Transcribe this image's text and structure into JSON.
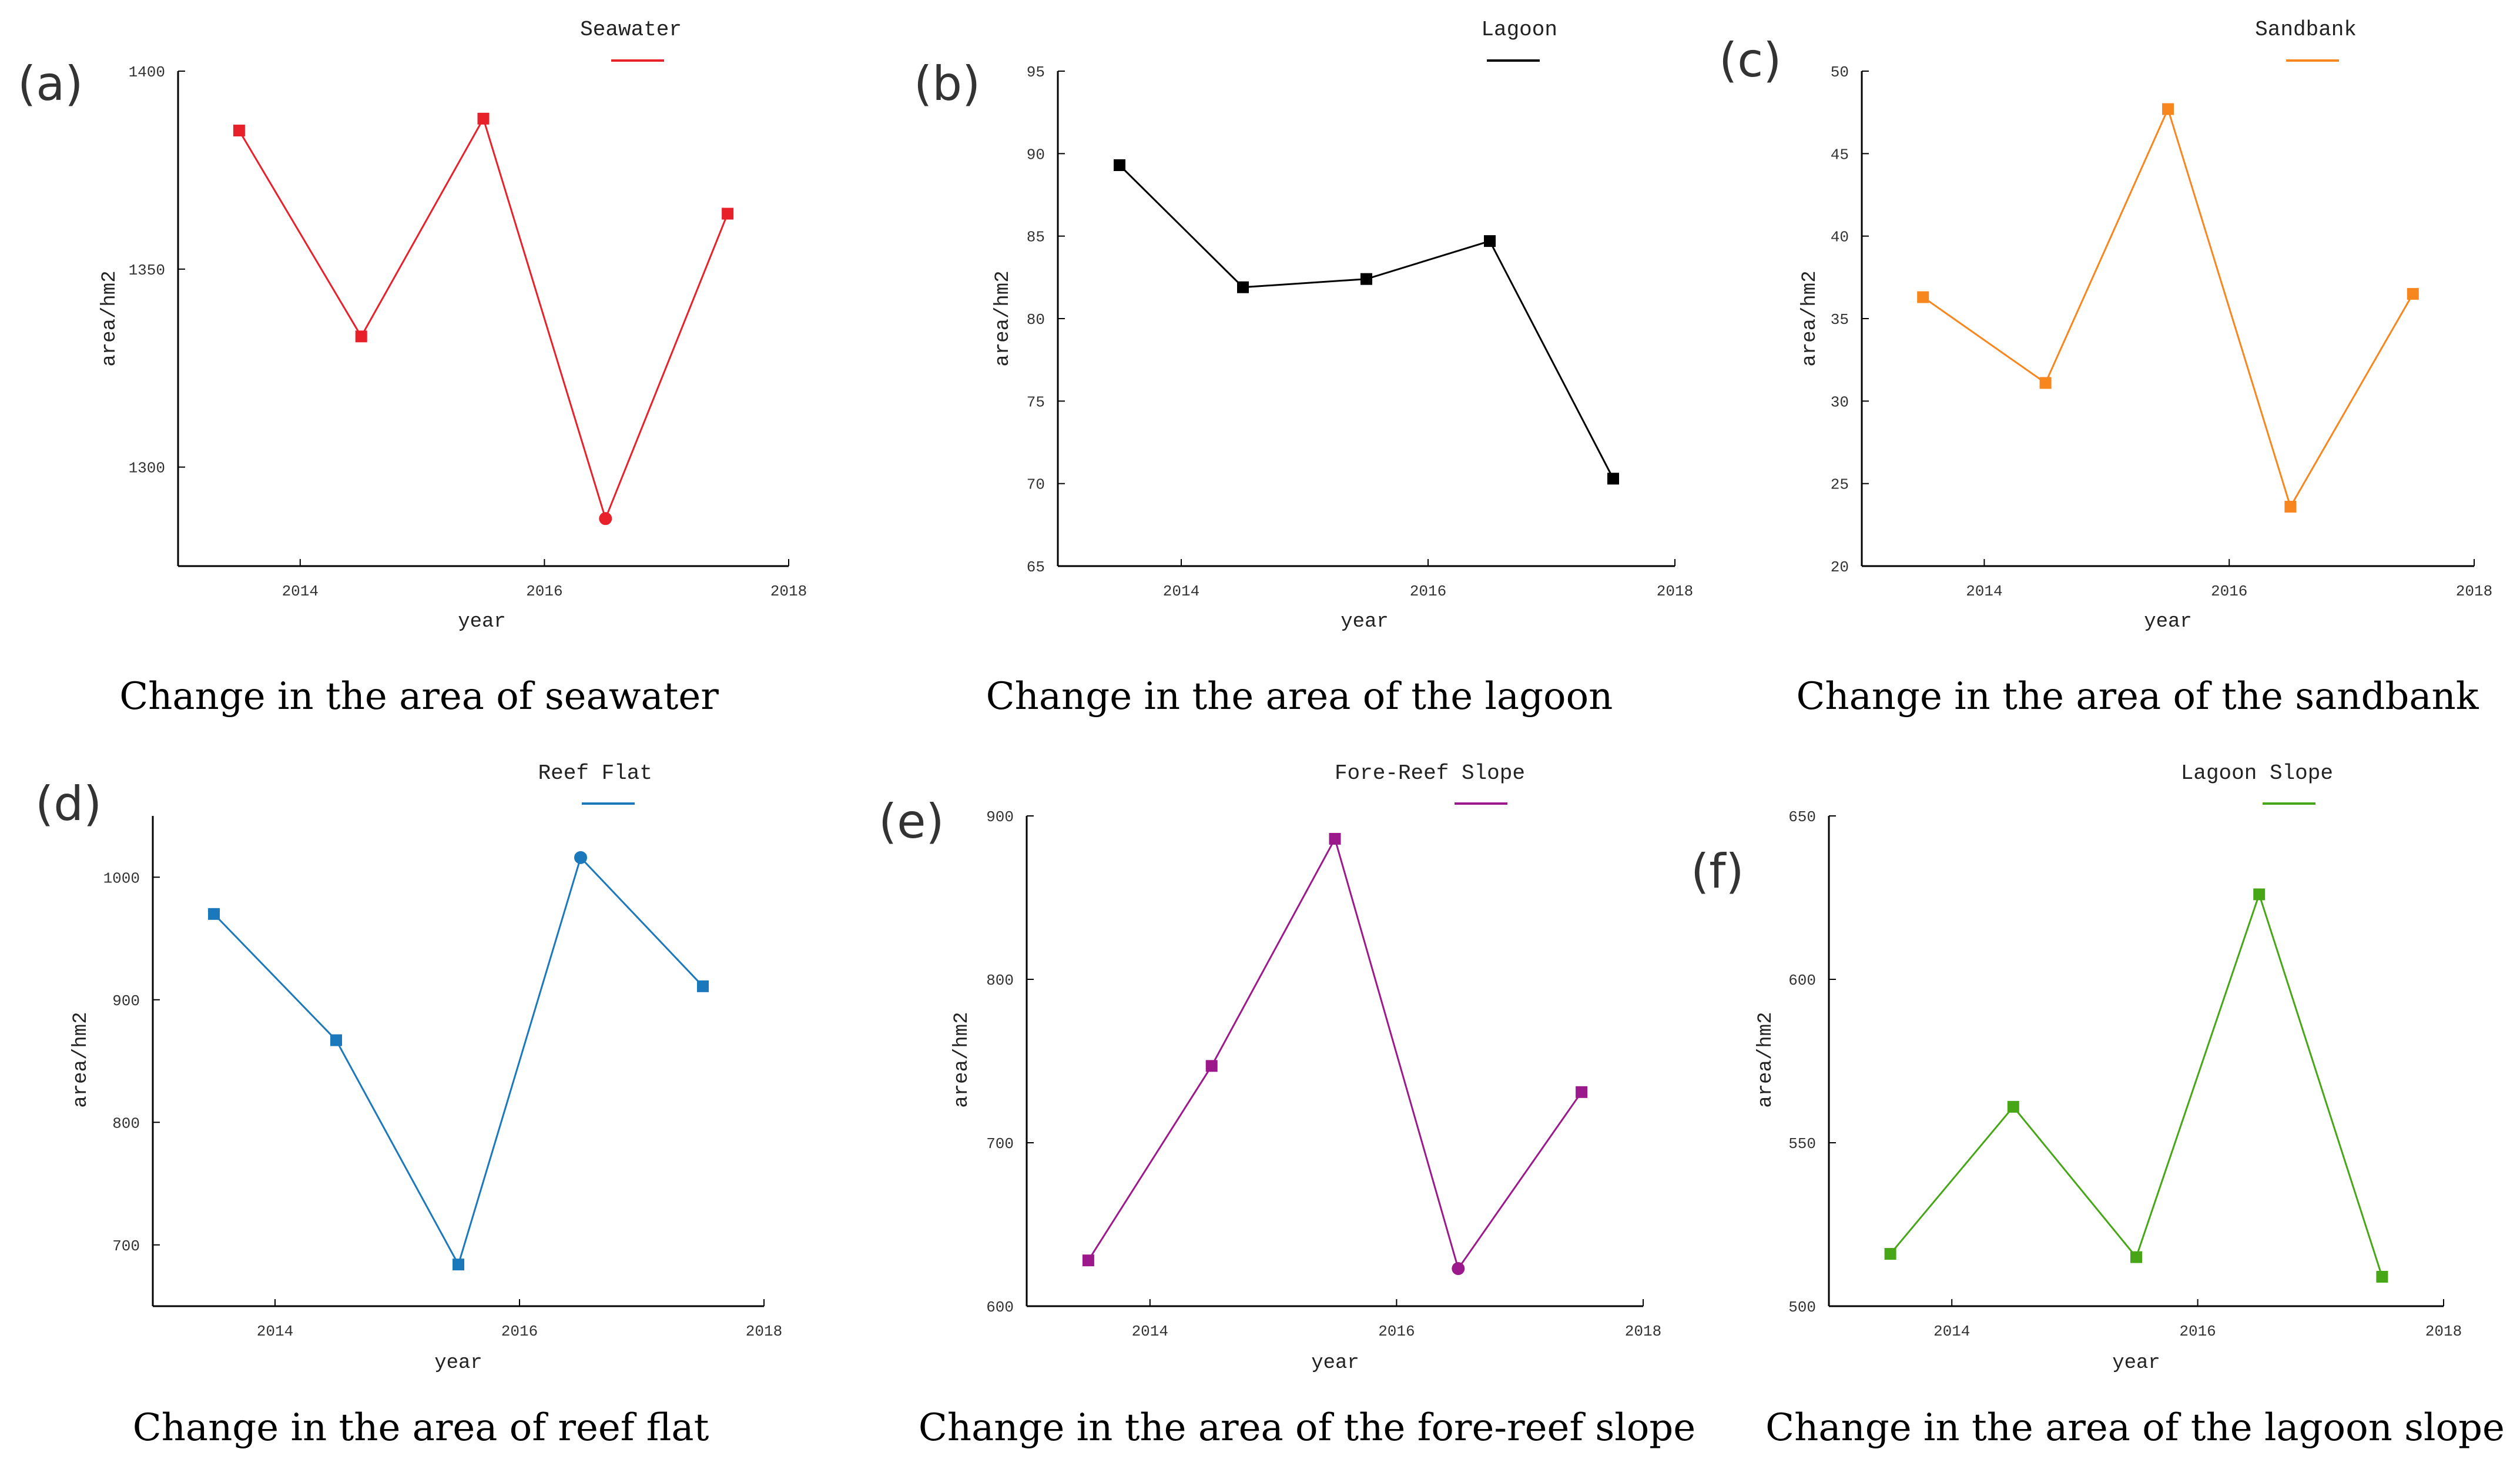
{
  "chart_data": [
    {
      "type": "line",
      "panel_label": "(a)",
      "legend": "Seawater",
      "color": "#e8202a",
      "caption": "Change in the area of seawater",
      "xlabel": "year",
      "ylabel": "area/hm2",
      "xlim": [
        2013,
        2018
      ],
      "ylim": [
        1275,
        1400
      ],
      "x_ticks": [
        2014,
        2016,
        2018
      ],
      "y_ticks": [
        1300,
        1350,
        1400
      ],
      "x": [
        2013.5,
        2014.5,
        2015.5,
        2016.5,
        2017.5
      ],
      "values": [
        1385,
        1333,
        1388,
        1287,
        1364
      ],
      "markers": [
        "square",
        "square",
        "square",
        "circle",
        "square"
      ]
    },
    {
      "type": "line",
      "panel_label": "(b)",
      "legend": "Lagoon",
      "color": "#000000",
      "caption": "Change in the area of the lagoon",
      "xlabel": "year",
      "ylabel": "area/hm2",
      "xlim": [
        2013,
        2018
      ],
      "ylim": [
        65,
        95
      ],
      "x_ticks": [
        2014,
        2016,
        2018
      ],
      "y_ticks": [
        65,
        70,
        75,
        80,
        85,
        90,
        95
      ],
      "x": [
        2013.5,
        2014.5,
        2015.5,
        2016.5,
        2017.5
      ],
      "values": [
        89.3,
        81.9,
        82.4,
        84.7,
        70.3
      ],
      "markers": [
        "square",
        "square",
        "square",
        "square",
        "square"
      ]
    },
    {
      "type": "line",
      "panel_label": "(c)",
      "legend": "Sandbank",
      "color": "#f7861f",
      "caption": "Change in the area of the sandbank",
      "xlabel": "year",
      "ylabel": "area/hm2",
      "xlim": [
        2013,
        2018
      ],
      "ylim": [
        20,
        50
      ],
      "x_ticks": [
        2014,
        2016,
        2018
      ],
      "y_ticks": [
        20,
        25,
        30,
        35,
        40,
        45,
        50
      ],
      "x": [
        2013.5,
        2014.5,
        2015.5,
        2016.5,
        2017.5
      ],
      "values": [
        36.3,
        31.1,
        47.7,
        23.6,
        36.5
      ],
      "markers": [
        "square",
        "square",
        "square",
        "square",
        "square"
      ]
    },
    {
      "type": "line",
      "panel_label": "(d)",
      "legend": "Reef Flat",
      "color": "#1a78bb",
      "caption": "Change in the area of reef flat",
      "xlabel": "year",
      "ylabel": "area/hm2",
      "xlim": [
        2013,
        2018
      ],
      "ylim": [
        650,
        1050
      ],
      "x_ticks": [
        2014,
        2016,
        2018
      ],
      "y_ticks": [
        700,
        800,
        900,
        1000
      ],
      "x": [
        2013.5,
        2014.5,
        2015.5,
        2016.5,
        2017.5
      ],
      "values": [
        970,
        867,
        684,
        1016,
        911
      ],
      "markers": [
        "square",
        "square",
        "square",
        "circle",
        "square"
      ]
    },
    {
      "type": "line",
      "panel_label": "(e)",
      "legend": "Fore-Reef Slope",
      "color": "#9c198c",
      "caption": "Change in the area of the fore-reef slope",
      "xlabel": "year",
      "ylabel": "area/hm2",
      "xlim": [
        2013,
        2018
      ],
      "ylim": [
        600,
        900
      ],
      "x_ticks": [
        2014,
        2016,
        2018
      ],
      "y_ticks": [
        600,
        700,
        800,
        900
      ],
      "x": [
        2013.5,
        2014.5,
        2015.5,
        2016.5,
        2017.5
      ],
      "values": [
        628,
        747,
        886,
        623,
        731
      ],
      "markers": [
        "square",
        "square",
        "square",
        "circle",
        "square"
      ]
    },
    {
      "type": "line",
      "panel_label": "(f)",
      "legend": "Lagoon Slope",
      "color": "#46a616",
      "caption": "Change in the area of the lagoon slope",
      "xlabel": "year",
      "ylabel": "area/hm2",
      "xlim": [
        2013,
        2018
      ],
      "ylim": [
        500,
        650
      ],
      "x_ticks": [
        2014,
        2016,
        2018
      ],
      "y_ticks": [
        500,
        550,
        600,
        650
      ],
      "x": [
        2013.5,
        2014.5,
        2015.5,
        2016.5,
        2017.5
      ],
      "values": [
        516,
        561,
        515,
        626,
        509
      ],
      "markers": [
        "square",
        "square",
        "square",
        "square",
        "square"
      ]
    }
  ]
}
